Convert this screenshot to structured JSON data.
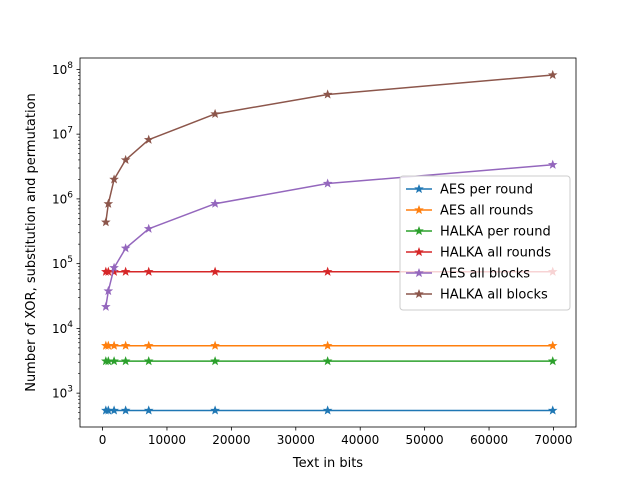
{
  "chart_data": {
    "type": "line",
    "title": "",
    "xlabel": "Text in bits",
    "ylabel": "Number of XOR, substitution and permutation",
    "yscale": "log",
    "xlim": [
      -3500,
      73500
    ],
    "ylim": [
      300,
      150000000
    ],
    "xticks": [
      0,
      10000,
      20000,
      30000,
      40000,
      50000,
      60000,
      70000
    ],
    "xtick_labels": [
      "0",
      "10000",
      "20000",
      "30000",
      "40000",
      "50000",
      "60000",
      "70000"
    ],
    "yticks": [
      1000,
      10000,
      100000,
      1000000,
      10000000,
      100000000
    ],
    "ytick_labels": [
      {
        "base": "10",
        "exp": "3"
      },
      {
        "base": "10",
        "exp": "4"
      },
      {
        "base": "10",
        "exp": "5"
      },
      {
        "base": "10",
        "exp": "6"
      },
      {
        "base": "10",
        "exp": "7"
      },
      {
        "base": "10",
        "exp": "8"
      }
    ],
    "grid": false,
    "legend_position": "center-right",
    "marker": "star",
    "x": [
      512,
      896,
      1792,
      3584,
      7168,
      17472,
      34944,
      69888
    ],
    "series": [
      {
        "name": "AES per round",
        "color": "#1f77b4",
        "values": [
          540,
          540,
          540,
          540,
          540,
          540,
          540,
          540
        ]
      },
      {
        "name": "AES all rounds",
        "color": "#ff7f0e",
        "values": [
          5400,
          5400,
          5400,
          5400,
          5400,
          5400,
          5400,
          5400
        ]
      },
      {
        "name": "HALKA per round",
        "color": "#2ca02c",
        "values": [
          3120,
          3120,
          3120,
          3120,
          3120,
          3120,
          3120,
          3120
        ]
      },
      {
        "name": "HALKA all rounds",
        "color": "#d62728",
        "values": [
          75000,
          75000,
          75000,
          75000,
          75000,
          75000,
          75000,
          75000
        ]
      },
      {
        "name": "AES all blocks",
        "color": "#9467bd",
        "values": [
          21600,
          37800,
          86400,
          172800,
          345600,
          842400,
          1728000,
          3369600
        ]
      },
      {
        "name": "HALKA all blocks",
        "color": "#8c564b",
        "values": [
          437000,
          840000,
          2000000,
          4000000,
          8200000,
          20500000,
          41000000,
          82000000
        ]
      }
    ]
  }
}
